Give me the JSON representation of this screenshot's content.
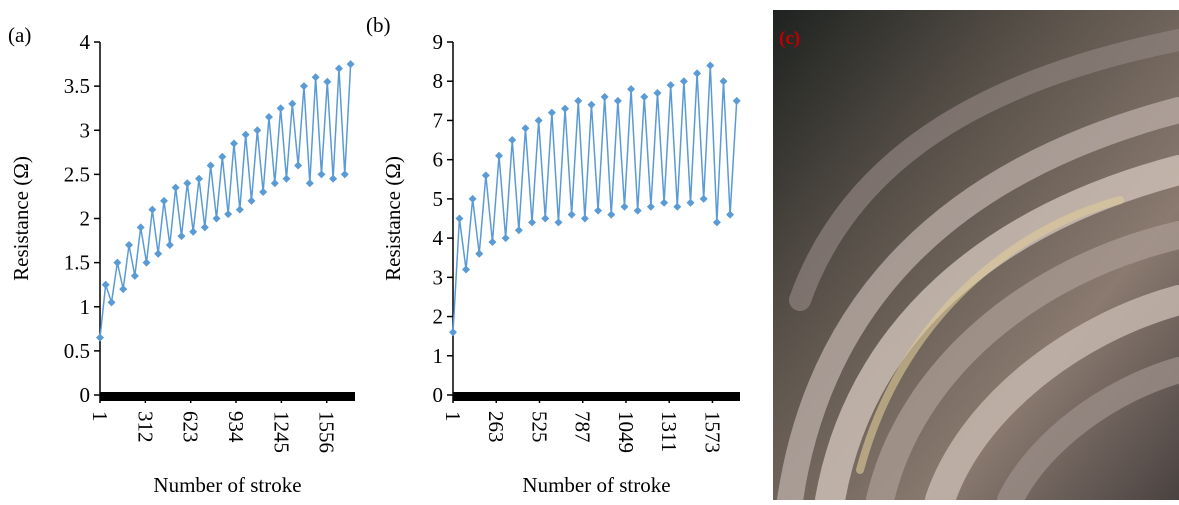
{
  "chart_data": [
    {
      "type": "line",
      "panel_label": "(a)",
      "x_label": "Number of stroke",
      "y_label": "Resistance (Ω)",
      "color": "#5b9bd5",
      "x": [
        1,
        40,
        80,
        120,
        160,
        200,
        240,
        280,
        320,
        360,
        400,
        440,
        480,
        520,
        560,
        600,
        640,
        680,
        720,
        760,
        800,
        840,
        880,
        920,
        960,
        1000,
        1040,
        1080,
        1120,
        1160,
        1200,
        1240,
        1280,
        1320,
        1360,
        1400,
        1440,
        1480,
        1520,
        1560,
        1600,
        1640,
        1680,
        1720
      ],
      "values": [
        0.65,
        1.25,
        1.05,
        1.5,
        1.2,
        1.7,
        1.35,
        1.9,
        1.5,
        2.1,
        1.6,
        2.2,
        1.7,
        2.35,
        1.8,
        2.4,
        1.85,
        2.45,
        1.9,
        2.6,
        2.0,
        2.7,
        2.05,
        2.85,
        2.1,
        2.95,
        2.2,
        3.0,
        2.3,
        3.15,
        2.4,
        3.25,
        2.45,
        3.3,
        2.6,
        3.5,
        2.4,
        3.6,
        2.5,
        3.55,
        2.45,
        3.7,
        2.5,
        3.75
      ],
      "xlim": [
        1,
        1750
      ],
      "xticks": [
        1,
        312,
        623,
        934,
        1245,
        1556
      ],
      "ylim": [
        0,
        4
      ],
      "yticks": [
        0,
        0.5,
        1,
        1.5,
        2,
        2.5,
        3,
        3.5,
        4
      ]
    },
    {
      "type": "line",
      "panel_label": "(b)",
      "x_label": "Number of stroke",
      "y_label": "Resistance (Ω)",
      "color": "#5b9bd5",
      "x": [
        1,
        40,
        80,
        120,
        160,
        200,
        240,
        280,
        320,
        360,
        400,
        440,
        480,
        520,
        560,
        600,
        640,
        680,
        720,
        760,
        800,
        840,
        880,
        920,
        960,
        1000,
        1040,
        1080,
        1120,
        1160,
        1200,
        1240,
        1280,
        1320,
        1360,
        1400,
        1440,
        1480,
        1520,
        1560,
        1600,
        1640,
        1680,
        1720
      ],
      "values": [
        1.6,
        4.5,
        3.2,
        5.0,
        3.6,
        5.6,
        3.9,
        6.1,
        4.0,
        6.5,
        4.2,
        6.8,
        4.4,
        7.0,
        4.5,
        7.2,
        4.4,
        7.3,
        4.6,
        7.5,
        4.5,
        7.4,
        4.7,
        7.6,
        4.6,
        7.5,
        4.8,
        7.8,
        4.7,
        7.6,
        4.8,
        7.7,
        4.9,
        7.9,
        4.8,
        8.0,
        4.9,
        8.2,
        5.0,
        8.4,
        4.4,
        8.0,
        4.6,
        7.5
      ],
      "xlim": [
        1,
        1740
      ],
      "xticks": [
        1,
        263,
        525,
        787,
        1049,
        1311,
        1573
      ],
      "ylim": [
        0,
        9
      ],
      "yticks": [
        0,
        1,
        2,
        3,
        4,
        5,
        6,
        7,
        8,
        9
      ]
    }
  ],
  "photo": {
    "label": "(c)"
  }
}
